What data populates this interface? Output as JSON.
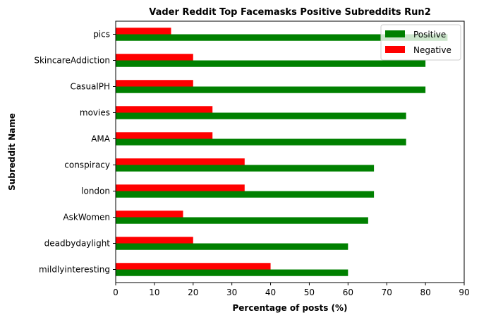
{
  "chart_data": {
    "type": "bar",
    "orientation": "horizontal",
    "title": "Vader Reddit Top Facemasks Positive Subreddits Run2",
    "xlabel": "Percentage of posts (%)",
    "ylabel": "Subreddit Name",
    "xlim": [
      0,
      90
    ],
    "xticks": [
      "0",
      "10",
      "20",
      "30",
      "40",
      "50",
      "60",
      "70",
      "80",
      "90"
    ],
    "categories": [
      "pics",
      "SkincareAddiction",
      "CasualPH",
      "movies",
      "AMA",
      "conspiracy",
      "london",
      "AskWomen",
      "deadbydaylight",
      "mildlyinteresting"
    ],
    "series": [
      {
        "name": "Positive",
        "color": "#008000",
        "values": [
          85.7,
          80,
          80,
          75,
          75,
          66.7,
          66.7,
          65.2,
          60,
          60
        ]
      },
      {
        "name": "Negative",
        "color": "#ff0000",
        "values": [
          14.3,
          20,
          20,
          25,
          25,
          33.3,
          33.3,
          17.4,
          20,
          40
        ]
      }
    ],
    "legend_position": "top-right",
    "grid": false
  }
}
